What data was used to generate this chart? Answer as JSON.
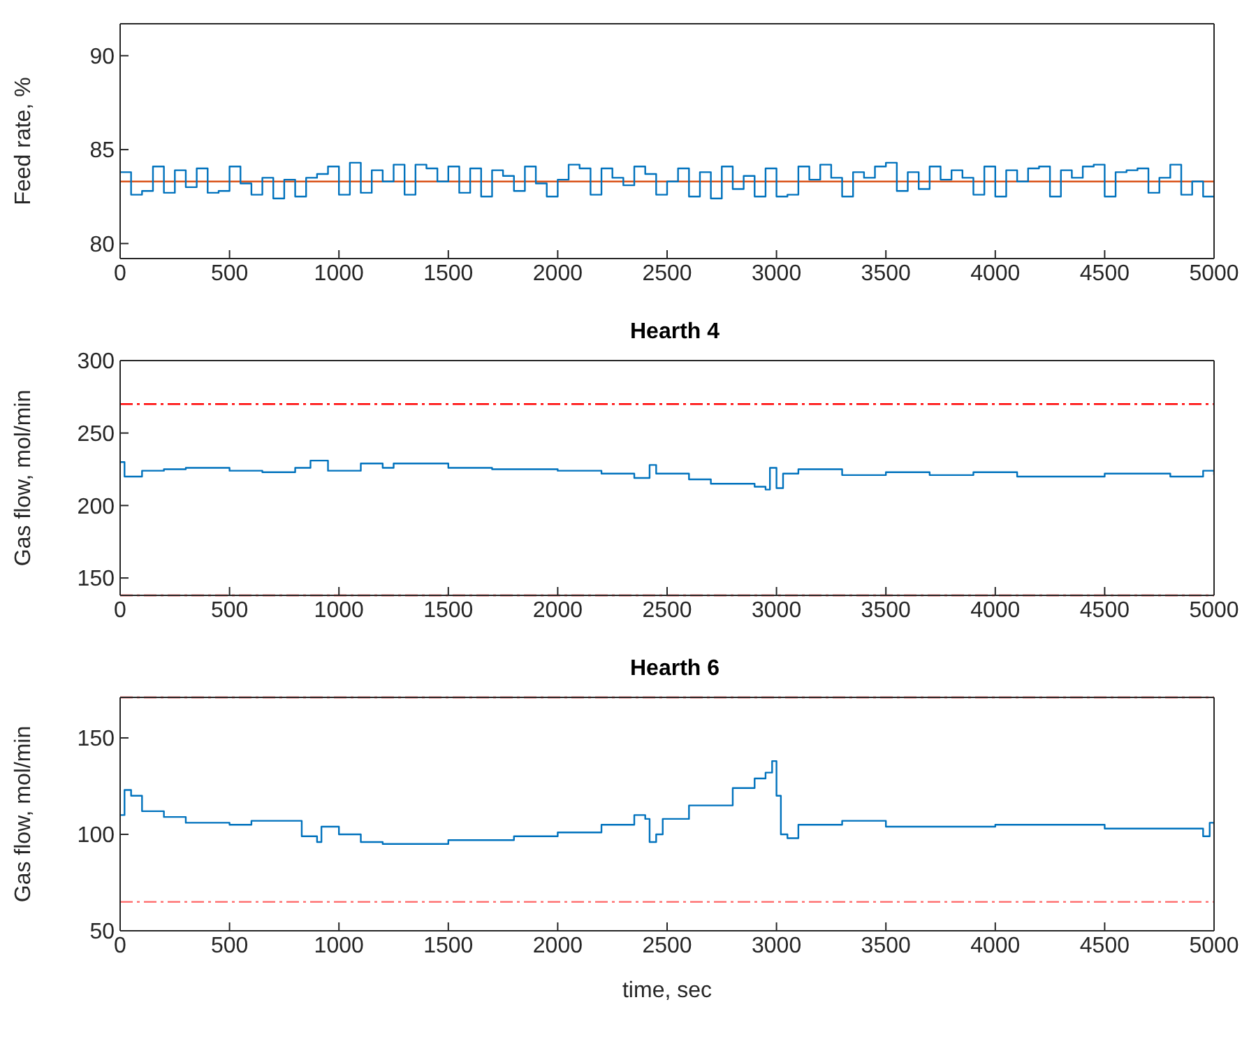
{
  "chart_data": [
    {
      "type": "step",
      "ylabel": "Feed rate, %",
      "xlim": [
        0,
        5000
      ],
      "xticks": [
        0,
        500,
        1000,
        1500,
        2000,
        2500,
        3000,
        3500,
        4000,
        4500,
        5000
      ],
      "ylim": [
        79.2,
        91.7
      ],
      "yticks": [
        80,
        85,
        90
      ],
      "x": [
        0,
        50,
        100,
        150,
        200,
        250,
        300,
        350,
        400,
        450,
        500,
        550,
        600,
        650,
        700,
        750,
        800,
        850,
        900,
        950,
        1000,
        1050,
        1100,
        1150,
        1200,
        1250,
        1300,
        1350,
        1400,
        1450,
        1500,
        1550,
        1600,
        1650,
        1700,
        1750,
        1800,
        1850,
        1900,
        1950,
        2000,
        2050,
        2100,
        2150,
        2200,
        2250,
        2300,
        2350,
        2400,
        2450,
        2500,
        2550,
        2600,
        2650,
        2700,
        2750,
        2800,
        2850,
        2900,
        2950,
        3000,
        3050,
        3100,
        3150,
        3200,
        3250,
        3300,
        3350,
        3400,
        3450,
        3500,
        3550,
        3600,
        3650,
        3700,
        3750,
        3800,
        3850,
        3900,
        3950,
        4000,
        4050,
        4100,
        4150,
        4200,
        4250,
        4300,
        4350,
        4400,
        4450,
        4500,
        4550,
        4600,
        4650,
        4700,
        4750,
        4800,
        4850,
        4900,
        4950,
        5000
      ],
      "series": [
        {
          "color": "#0072bd",
          "values": [
            83.8,
            82.6,
            82.8,
            84.1,
            82.7,
            83.9,
            83.0,
            84.0,
            82.7,
            82.8,
            84.1,
            83.2,
            82.6,
            83.5,
            82.4,
            83.4,
            82.5,
            83.5,
            83.7,
            84.1,
            82.6,
            84.3,
            82.7,
            83.9,
            83.3,
            84.2,
            82.6,
            84.2,
            84.0,
            83.3,
            84.1,
            82.7,
            84.0,
            82.5,
            83.9,
            83.6,
            82.8,
            84.1,
            83.2,
            82.5,
            83.4,
            84.2,
            84.0,
            82.6,
            84.0,
            83.5,
            83.1,
            84.1,
            83.7,
            82.6,
            83.3,
            84.0,
            82.5,
            83.8,
            82.4,
            84.1,
            82.9,
            83.6,
            82.5,
            84.0,
            82.5,
            82.6,
            84.1,
            83.4,
            84.2,
            83.5,
            82.5,
            83.8,
            83.5,
            84.1,
            84.3,
            82.8,
            83.8,
            82.9,
            84.1,
            83.4,
            83.9,
            83.5,
            82.6,
            84.1,
            82.5,
            83.9,
            83.3,
            84.0,
            84.1,
            82.5,
            83.9,
            83.5,
            84.1,
            84.2,
            82.5,
            83.8,
            83.9,
            84.0,
            82.7,
            83.5,
            84.2,
            82.6,
            83.3,
            82.5,
            82.5
          ]
        }
      ],
      "ref_lines": [
        {
          "axis": "y",
          "value": 83.3,
          "color": "#d95319",
          "line_style": "solid"
        }
      ]
    },
    {
      "type": "step",
      "title": "Hearth 4",
      "ylabel": "Gas flow, mol/min",
      "xlim": [
        0,
        5000
      ],
      "xticks": [
        0,
        500,
        1000,
        1500,
        2000,
        2500,
        3000,
        3500,
        4000,
        4500,
        5000
      ],
      "ylim": [
        138,
        300
      ],
      "yticks": [
        150,
        200,
        250,
        300
      ],
      "x": [
        0,
        20,
        100,
        200,
        300,
        500,
        650,
        800,
        870,
        950,
        1100,
        1200,
        1250,
        1500,
        1700,
        2000,
        2200,
        2350,
        2420,
        2450,
        2600,
        2700,
        2900,
        2950,
        2970,
        3000,
        3030,
        3100,
        3300,
        3500,
        3700,
        3900,
        4100,
        4500,
        4800,
        4950,
        5000
      ],
      "series": [
        {
          "color": "#0072bd",
          "values": [
            230,
            220,
            224,
            225,
            226,
            224,
            223,
            226,
            231,
            224,
            229,
            226,
            229,
            226,
            225,
            224,
            222,
            219,
            228,
            222,
            218,
            215,
            213,
            211,
            226,
            212,
            222,
            225,
            221,
            223,
            221,
            223,
            220,
            222,
            220,
            224,
            221
          ]
        }
      ],
      "ref_lines": [
        {
          "axis": "y",
          "value": 270,
          "color": "#ff0000",
          "line_style": "dashdot"
        },
        {
          "axis": "y",
          "value": 138,
          "color": "#ff0000",
          "line_style": "dashdot"
        }
      ]
    },
    {
      "type": "step",
      "title": "Hearth 6",
      "xlabel": "time, sec",
      "ylabel": "Gas flow, mol/min",
      "xlim": [
        0,
        5000
      ],
      "xticks": [
        0,
        500,
        1000,
        1500,
        2000,
        2500,
        3000,
        3500,
        4000,
        4500,
        5000
      ],
      "ylim": [
        50,
        171
      ],
      "yticks": [
        50,
        100,
        150
      ],
      "x": [
        0,
        20,
        50,
        100,
        200,
        300,
        500,
        600,
        800,
        830,
        900,
        920,
        1000,
        1100,
        1200,
        1500,
        1800,
        2000,
        2200,
        2350,
        2400,
        2420,
        2450,
        2480,
        2600,
        2800,
        2900,
        2950,
        2980,
        3000,
        3020,
        3050,
        3100,
        3300,
        3500,
        4000,
        4500,
        4900,
        4950,
        4980,
        5000
      ],
      "series": [
        {
          "color": "#0072bd",
          "values": [
            110,
            123,
            120,
            112,
            109,
            106,
            105,
            107,
            107,
            99,
            96,
            104,
            100,
            96,
            95,
            97,
            99,
            101,
            105,
            110,
            108,
            96,
            100,
            108,
            115,
            124,
            129,
            132,
            138,
            120,
            100,
            98,
            105,
            107,
            104,
            105,
            103,
            103,
            99,
            106,
            105
          ]
        }
      ],
      "ref_lines": [
        {
          "axis": "y",
          "value": 171,
          "color": "#ff0000",
          "line_style": "dashdot"
        },
        {
          "axis": "y",
          "value": 65,
          "color": "#ff6666",
          "line_style": "dashdot"
        }
      ]
    }
  ]
}
